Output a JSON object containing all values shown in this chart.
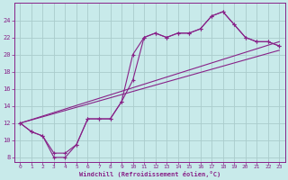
{
  "background_color": "#c8eaea",
  "grid_color": "#aacccc",
  "line_color": "#882288",
  "xlabel": "Windchill (Refroidissement éolien,°C)",
  "xlim": [
    -0.5,
    23.5
  ],
  "ylim": [
    7.5,
    26
  ],
  "yticks": [
    8,
    10,
    12,
    14,
    16,
    18,
    20,
    22,
    24
  ],
  "xticks": [
    0,
    1,
    2,
    3,
    4,
    5,
    6,
    7,
    8,
    9,
    10,
    11,
    12,
    13,
    14,
    15,
    16,
    17,
    18,
    19,
    20,
    21,
    22,
    23
  ],
  "series_marked_1": {
    "x": [
      0,
      1,
      2,
      3,
      4,
      5,
      6,
      7,
      8,
      9,
      10,
      11,
      12,
      13,
      14,
      15,
      16,
      17,
      18,
      19,
      20,
      21,
      22,
      23
    ],
    "y": [
      12,
      11,
      10.5,
      8,
      8,
      9.5,
      12.5,
      12.5,
      12.5,
      14.5,
      20,
      22,
      22.5,
      22,
      22.5,
      22.5,
      23,
      24.5,
      25,
      23.5,
      22,
      21.5,
      21.5,
      21
    ]
  },
  "series_marked_2": {
    "x": [
      0,
      1,
      2,
      3,
      4,
      5,
      6,
      7,
      8,
      9,
      10,
      11,
      12,
      13,
      14,
      15,
      16,
      17,
      18,
      19,
      20,
      21,
      22,
      23
    ],
    "y": [
      12,
      11,
      10.5,
      8.5,
      8.5,
      9.5,
      12.5,
      12.5,
      12.5,
      14.5,
      17,
      22,
      22.5,
      22,
      22.5,
      22.5,
      23,
      24.5,
      25,
      23.5,
      22,
      21.5,
      21.5,
      21
    ]
  },
  "diag1": {
    "x": [
      0,
      23
    ],
    "y": [
      12,
      21.5
    ]
  },
  "diag2": {
    "x": [
      0,
      23
    ],
    "y": [
      12,
      20.5
    ]
  }
}
